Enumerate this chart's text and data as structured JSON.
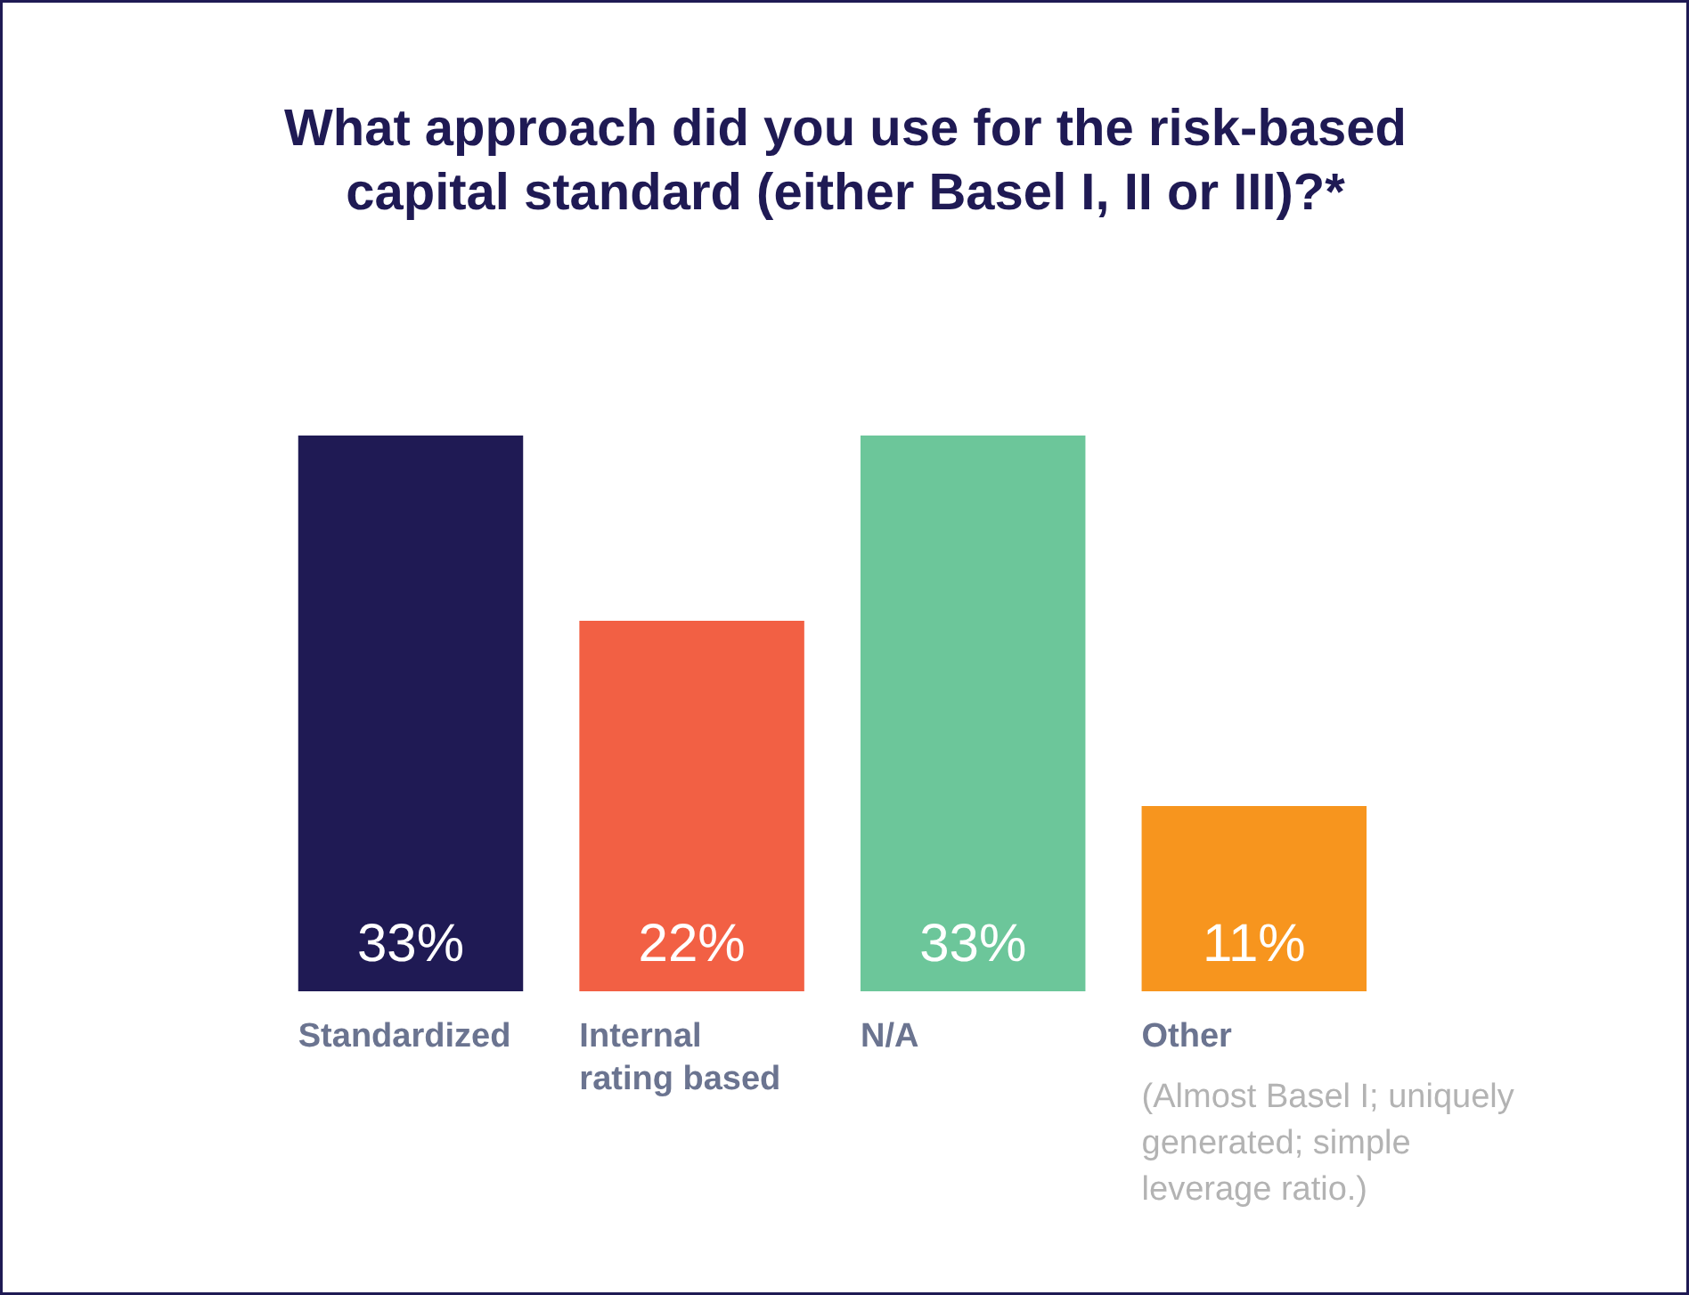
{
  "chart_data": {
    "type": "bar",
    "title": "What approach did you use for the risk-based\ncapital standard (either Basel I, II or III)?*",
    "categories": [
      "Standardized",
      "Internal rating based",
      "N/A",
      "Other"
    ],
    "values": [
      33,
      22,
      33,
      11
    ],
    "colors": [
      "#1f1a54",
      "#f26044",
      "#6cc69a",
      "#f7951e"
    ],
    "value_labels": [
      "33%",
      "22%",
      "33%",
      "11%"
    ],
    "annotations": [
      "(Almost Basel I; uniquely generated; simple leverage ratio.)"
    ]
  }
}
